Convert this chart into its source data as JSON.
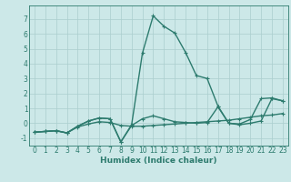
{
  "xlabel": "Humidex (Indice chaleur)",
  "x_values": [
    0,
    1,
    2,
    3,
    4,
    5,
    6,
    7,
    8,
    9,
    10,
    11,
    12,
    13,
    14,
    15,
    16,
    17,
    18,
    19,
    20,
    21,
    22,
    23
  ],
  "series": [
    {
      "y": [
        -0.6,
        -0.55,
        -0.5,
        -0.65,
        -0.25,
        -0.05,
        0.1,
        0.05,
        -0.15,
        -0.2,
        -0.2,
        -0.15,
        -0.1,
        -0.05,
        0.0,
        0.05,
        0.1,
        0.15,
        0.2,
        0.3,
        0.4,
        0.5,
        0.55,
        0.65
      ],
      "color": "#2d7b6e",
      "lw": 1.0
    },
    {
      "y": [
        -0.6,
        -0.55,
        -0.5,
        -0.65,
        -0.2,
        0.15,
        0.35,
        0.3,
        -1.25,
        -0.1,
        4.7,
        7.2,
        6.5,
        6.05,
        4.75,
        3.2,
        3.0,
        1.15,
        0.0,
        -0.05,
        0.25,
        1.65,
        1.7,
        1.5
      ],
      "color": "#2d7b6e",
      "lw": 1.0
    },
    {
      "y": [
        -0.6,
        -0.55,
        -0.5,
        -0.65,
        -0.2,
        0.15,
        0.35,
        0.3,
        -1.25,
        -0.15,
        0.3,
        0.5,
        0.3,
        0.1,
        0.05,
        0.0,
        0.05,
        1.1,
        0.0,
        -0.1,
        0.0,
        0.15,
        1.65,
        1.5
      ],
      "color": "#2d7b6e",
      "lw": 1.0
    }
  ],
  "ylim": [
    -1.5,
    7.9
  ],
  "xlim": [
    -0.5,
    23.5
  ],
  "yticks": [
    -1,
    0,
    1,
    2,
    3,
    4,
    5,
    6,
    7
  ],
  "xticks": [
    0,
    1,
    2,
    3,
    4,
    5,
    6,
    7,
    8,
    9,
    10,
    11,
    12,
    13,
    14,
    15,
    16,
    17,
    18,
    19,
    20,
    21,
    22,
    23
  ],
  "bg_color": "#cce8e8",
  "grid_color": "#aacece",
  "marker": "+",
  "marker_size": 3,
  "marker_lw": 0.8,
  "line_color": "#2d7b6e",
  "tick_fontsize": 5.5,
  "xlabel_fontsize": 6.5,
  "xlabel_color": "#2d7b6e",
  "tick_color": "#2d7b6e",
  "spine_color": "#2d7b6e"
}
